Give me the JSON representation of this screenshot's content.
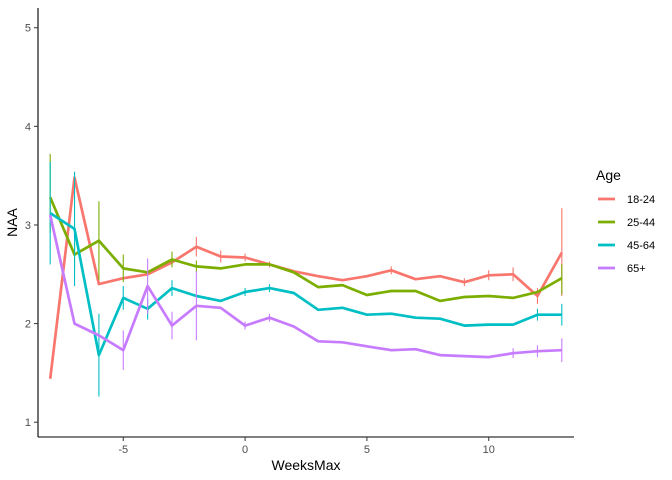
{
  "chart_data": {
    "type": "line",
    "xlabel": "WeeksMax",
    "ylabel": "NAA",
    "xlim": [
      -8.5,
      13.5
    ],
    "ylim": [
      0.85,
      5.2
    ],
    "x_ticks": [
      -5,
      0,
      5,
      10
    ],
    "y_ticks": [
      1,
      2,
      3,
      4,
      5
    ],
    "grid": false,
    "legend": {
      "title": "Age",
      "position": "right"
    },
    "series": [
      {
        "name": "18-24",
        "color": "#F8766D",
        "x": [
          -8,
          -7,
          -6,
          -5,
          -4,
          -3,
          -2,
          -1,
          0,
          1,
          2,
          3,
          4,
          5,
          6,
          7,
          8,
          9,
          10,
          11,
          12,
          13
        ],
        "values": [
          1.44,
          3.48,
          2.4,
          2.46,
          2.5,
          2.62,
          2.78,
          2.68,
          2.67,
          2.6,
          2.53,
          2.48,
          2.44,
          2.48,
          2.54,
          2.45,
          2.48,
          2.42,
          2.49,
          2.5,
          2.28,
          2.72
        ],
        "error_low": [
          null,
          null,
          null,
          null,
          null,
          null,
          2.68,
          2.62,
          2.63,
          2.57,
          null,
          null,
          null,
          null,
          2.5,
          null,
          null,
          2.38,
          2.44,
          2.43,
          2.2,
          2.28
        ],
        "error_high": [
          null,
          null,
          null,
          null,
          null,
          null,
          2.88,
          2.74,
          2.71,
          2.63,
          null,
          null,
          null,
          null,
          2.58,
          null,
          null,
          2.46,
          2.54,
          2.57,
          2.36,
          3.17
        ]
      },
      {
        "name": "25-44",
        "color": "#7CAE00",
        "x": [
          -8,
          -7,
          -6,
          -5,
          -4,
          -3,
          -2,
          -1,
          0,
          1,
          2,
          3,
          4,
          5,
          6,
          7,
          8,
          9,
          10,
          11,
          12,
          13
        ],
        "values": [
          3.28,
          2.7,
          2.84,
          2.56,
          2.52,
          2.65,
          2.58,
          2.56,
          2.6,
          2.6,
          2.52,
          2.37,
          2.39,
          2.29,
          2.33,
          2.33,
          2.23,
          2.27,
          2.28,
          2.26,
          2.32,
          2.46
        ],
        "error_low": [
          2.92,
          2.58,
          2.44,
          2.42,
          null,
          2.57,
          2.52,
          null,
          null,
          null,
          null,
          null,
          null,
          null,
          null,
          null,
          null,
          null,
          null,
          null,
          null,
          2.3
        ],
        "error_high": [
          3.72,
          2.82,
          3.24,
          2.7,
          null,
          2.73,
          2.64,
          null,
          null,
          null,
          null,
          null,
          null,
          null,
          null,
          null,
          null,
          null,
          null,
          null,
          null,
          2.6
        ]
      },
      {
        "name": "45-64",
        "color": "#00BFC4",
        "x": [
          -8,
          -7,
          -6,
          -5,
          -4,
          -3,
          -2,
          -1,
          0,
          1,
          2,
          3,
          4,
          5,
          6,
          7,
          8,
          9,
          10,
          11,
          12,
          13
        ],
        "values": [
          3.12,
          2.96,
          1.68,
          2.26,
          2.15,
          2.36,
          2.28,
          2.23,
          2.32,
          2.36,
          2.31,
          2.14,
          2.16,
          2.09,
          2.1,
          2.06,
          2.05,
          1.98,
          1.99,
          1.99,
          2.09,
          2.09
        ],
        "error_low": [
          2.6,
          2.38,
          1.26,
          2.14,
          2.04,
          2.28,
          null,
          null,
          2.28,
          2.32,
          null,
          null,
          null,
          null,
          null,
          null,
          null,
          null,
          null,
          null,
          2.03,
          1.98
        ],
        "error_high": [
          3.64,
          3.54,
          2.1,
          2.38,
          2.26,
          2.44,
          null,
          null,
          2.36,
          2.4,
          null,
          null,
          null,
          null,
          null,
          null,
          null,
          null,
          null,
          null,
          2.15,
          2.2
        ]
      },
      {
        "name": "65+",
        "color": "#C77CFF",
        "x": [
          -8,
          -7,
          -6,
          -5,
          -4,
          -3,
          -2,
          -1,
          0,
          1,
          2,
          3,
          4,
          5,
          6,
          7,
          8,
          9,
          10,
          11,
          12,
          13
        ],
        "values": [
          3.1,
          2.0,
          1.88,
          1.73,
          2.38,
          1.98,
          2.18,
          2.16,
          1.98,
          2.06,
          1.97,
          1.82,
          1.81,
          1.77,
          1.73,
          1.74,
          1.68,
          1.67,
          1.66,
          1.7,
          1.72,
          1.73
        ],
        "error_low": [
          null,
          null,
          null,
          1.53,
          2.1,
          1.84,
          1.83,
          null,
          1.94,
          2.02,
          null,
          null,
          null,
          null,
          null,
          null,
          null,
          null,
          null,
          1.65,
          1.66,
          1.61
        ],
        "error_high": [
          null,
          null,
          null,
          1.93,
          2.66,
          2.12,
          2.53,
          null,
          2.02,
          2.1,
          null,
          null,
          null,
          null,
          null,
          null,
          null,
          null,
          null,
          1.75,
          1.78,
          1.85
        ]
      }
    ]
  }
}
